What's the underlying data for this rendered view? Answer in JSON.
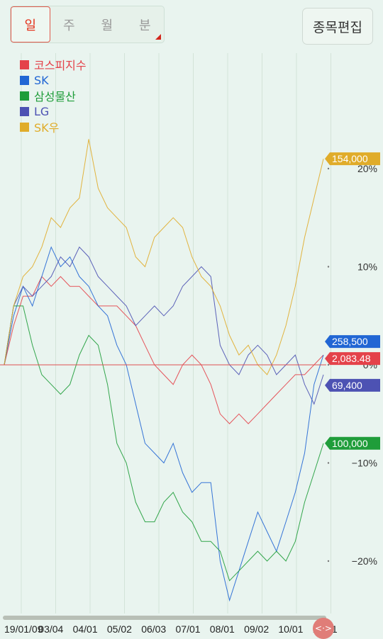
{
  "tabs": {
    "items": [
      {
        "label": "일",
        "active": true
      },
      {
        "label": "주",
        "active": false
      },
      {
        "label": "월",
        "active": false
      },
      {
        "label": "분",
        "active": false
      }
    ]
  },
  "edit_button": {
    "label": "종목편집"
  },
  "handle": {
    "label": "<·>"
  },
  "colors": {
    "background": "#e9f4ef",
    "baseline": "#e05050",
    "accent": "#e4321b"
  },
  "chart_data": {
    "type": "line",
    "x_ticks": [
      "19/01/09",
      "03/04",
      "04/01",
      "05/02",
      "06/03",
      "07/01",
      "08/01",
      "09/02",
      "10/01",
      "10/31"
    ],
    "ylim": [
      -25,
      28
    ],
    "y_ticks": [
      {
        "value": 20,
        "label": "20%"
      },
      {
        "value": 10,
        "label": "10%"
      },
      {
        "value": 0,
        "label": "0%"
      },
      {
        "value": -10,
        "label": "−10%"
      },
      {
        "value": -20,
        "label": "−20%"
      }
    ],
    "legend_position": "top-left",
    "grid": "vertical",
    "series": [
      {
        "name": "코스피지수",
        "color": "#e4424a",
        "label": "2,083.48",
        "values": [
          0,
          4,
          7,
          7,
          9,
          8,
          9,
          8,
          8,
          7,
          6,
          6,
          6,
          5,
          4,
          2,
          0,
          -1,
          -2,
          0,
          1,
          0,
          -2,
          -5,
          -6,
          -5,
          -6,
          -5,
          -4,
          -3,
          -2,
          -1,
          -1,
          0,
          1
        ]
      },
      {
        "name": "SK",
        "color": "#2166d4",
        "label": "258,500",
        "values": [
          0,
          5,
          8,
          6,
          9,
          12,
          10,
          11,
          9,
          8,
          6,
          5,
          2,
          0,
          -4,
          -8,
          -9,
          -10,
          -8,
          -11,
          -13,
          -12,
          -12,
          -20,
          -24,
          -21,
          -18,
          -15,
          -17,
          -19,
          -16,
          -13,
          -9,
          -2,
          1
        ]
      },
      {
        "name": "삼성물산",
        "color": "#1f9d3a",
        "label": "100,000",
        "values": [
          0,
          6,
          6,
          2,
          -1,
          -2,
          -3,
          -2,
          1,
          3,
          2,
          -2,
          -8,
          -10,
          -14,
          -16,
          -16,
          -14,
          -13,
          -15,
          -16,
          -18,
          -18,
          -19,
          -22,
          -21,
          -20,
          -19,
          -20,
          -19,
          -20,
          -18,
          -14,
          -11,
          -8
        ]
      },
      {
        "name": "LG",
        "color": "#4d52b3",
        "label": "69,400",
        "values": [
          0,
          6,
          8,
          7,
          8,
          9,
          11,
          10,
          12,
          11,
          9,
          8,
          7,
          6,
          4,
          5,
          6,
          5,
          6,
          8,
          9,
          10,
          9,
          2,
          0,
          -1,
          1,
          2,
          1,
          -1,
          0,
          1,
          -2,
          -4,
          -1
        ]
      },
      {
        "name": "SK우",
        "color": "#e0ac2a",
        "label": "154,000",
        "values": [
          0,
          6,
          9,
          10,
          12,
          15,
          14,
          16,
          17,
          23,
          18,
          16,
          15,
          14,
          11,
          10,
          13,
          14,
          15,
          14,
          11,
          9,
          8,
          6,
          3,
          1,
          2,
          0,
          -1,
          1,
          4,
          8,
          13,
          17,
          21
        ]
      }
    ]
  }
}
